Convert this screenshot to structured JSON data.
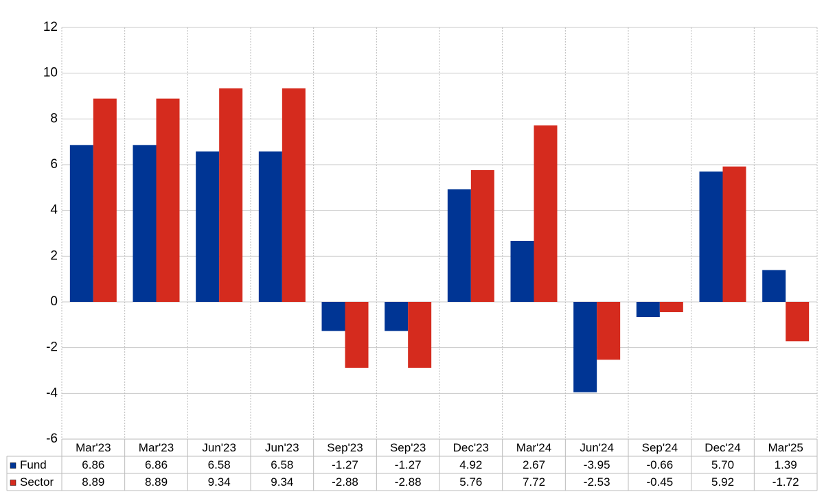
{
  "chart_data": {
    "type": "bar",
    "categories": [
      "Mar'23",
      "Mar'23",
      "Jun'23",
      "Jun'23",
      "Sep'23",
      "Sep'23",
      "Dec'23",
      "Mar'24",
      "Jun'24",
      "Sep'24",
      "Dec'24",
      "Mar'25"
    ],
    "series": [
      {
        "name": "Fund",
        "color": "#003594",
        "values": [
          6.86,
          6.86,
          6.58,
          6.58,
          -1.27,
          -1.27,
          4.92,
          2.67,
          -3.95,
          -0.66,
          5.7,
          1.39
        ],
        "value_labels": [
          "6.86",
          "6.86",
          "6.58",
          "6.58",
          "-1.27",
          "-1.27",
          "4.92",
          "2.67",
          "-3.95",
          "-0.66",
          "5.70",
          "1.39"
        ]
      },
      {
        "name": "Sector",
        "color": "#d52b1e",
        "values": [
          8.89,
          8.89,
          9.34,
          9.34,
          -2.88,
          -2.88,
          5.76,
          7.72,
          -2.53,
          -0.45,
          5.92,
          -1.72
        ],
        "value_labels": [
          "8.89",
          "8.89",
          "9.34",
          "9.34",
          "-2.88",
          "-2.88",
          "5.76",
          "7.72",
          "-2.53",
          "-0.45",
          "5.92",
          "-1.72"
        ]
      }
    ],
    "ylim": [
      -6,
      12
    ],
    "yticks": [
      -6,
      -4,
      -2,
      0,
      2,
      4,
      6,
      8,
      10,
      12
    ],
    "grid": true,
    "negative_label_color": "#ff0000"
  }
}
